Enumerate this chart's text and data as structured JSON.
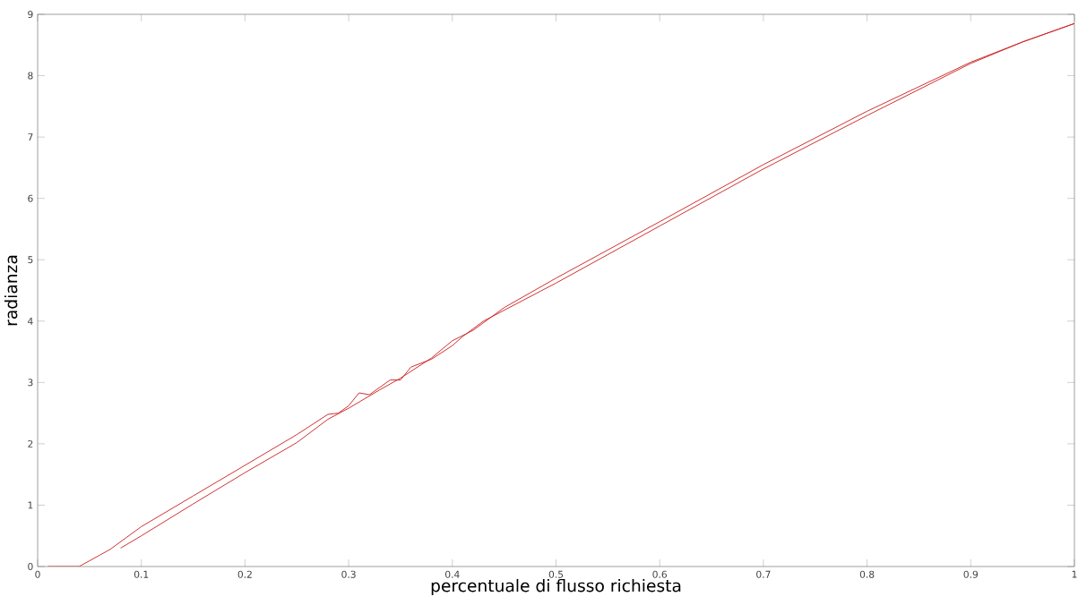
{
  "chart_data": {
    "type": "line",
    "xlabel": "percentuale di flusso richiesta",
    "ylabel": "radianza",
    "xlim": [
      0,
      1
    ],
    "ylim": [
      0,
      9
    ],
    "xticks": [
      0,
      0.1,
      0.2,
      0.3,
      0.4,
      0.5,
      0.6,
      0.7,
      0.8,
      0.9,
      1
    ],
    "yticks": [
      0,
      1,
      2,
      3,
      4,
      5,
      6,
      7,
      8,
      9
    ],
    "series": [
      {
        "color": "#cc2222",
        "x": [
          0.01,
          0.04,
          0.07,
          0.1,
          0.15,
          0.2,
          0.25,
          0.28,
          0.29,
          0.3,
          0.31,
          0.32,
          0.34,
          0.35,
          0.36,
          0.38,
          0.4,
          0.41,
          0.43,
          0.5,
          0.6,
          0.7,
          0.8,
          0.9,
          0.95,
          1.0
        ],
        "values": [
          0,
          0,
          0.28,
          0.65,
          1.15,
          1.65,
          2.15,
          2.48,
          2.5,
          2.62,
          2.83,
          2.8,
          3.04,
          3.04,
          3.25,
          3.38,
          3.6,
          3.75,
          4.0,
          4.62,
          5.55,
          6.48,
          7.35,
          8.2,
          8.55,
          8.85
        ]
      },
      {
        "color": "#cc2222",
        "x": [
          0.08,
          0.1,
          0.15,
          0.2,
          0.25,
          0.28,
          0.3,
          0.33,
          0.35,
          0.38,
          0.4,
          0.42,
          0.45,
          0.5,
          0.6,
          0.7,
          0.8,
          0.9,
          0.95,
          1.0
        ],
        "values": [
          0.3,
          0.5,
          1.02,
          1.53,
          2.02,
          2.4,
          2.58,
          2.88,
          3.07,
          3.4,
          3.68,
          3.85,
          4.22,
          4.7,
          5.62,
          6.55,
          7.42,
          8.22,
          8.55,
          8.85
        ]
      }
    ]
  }
}
